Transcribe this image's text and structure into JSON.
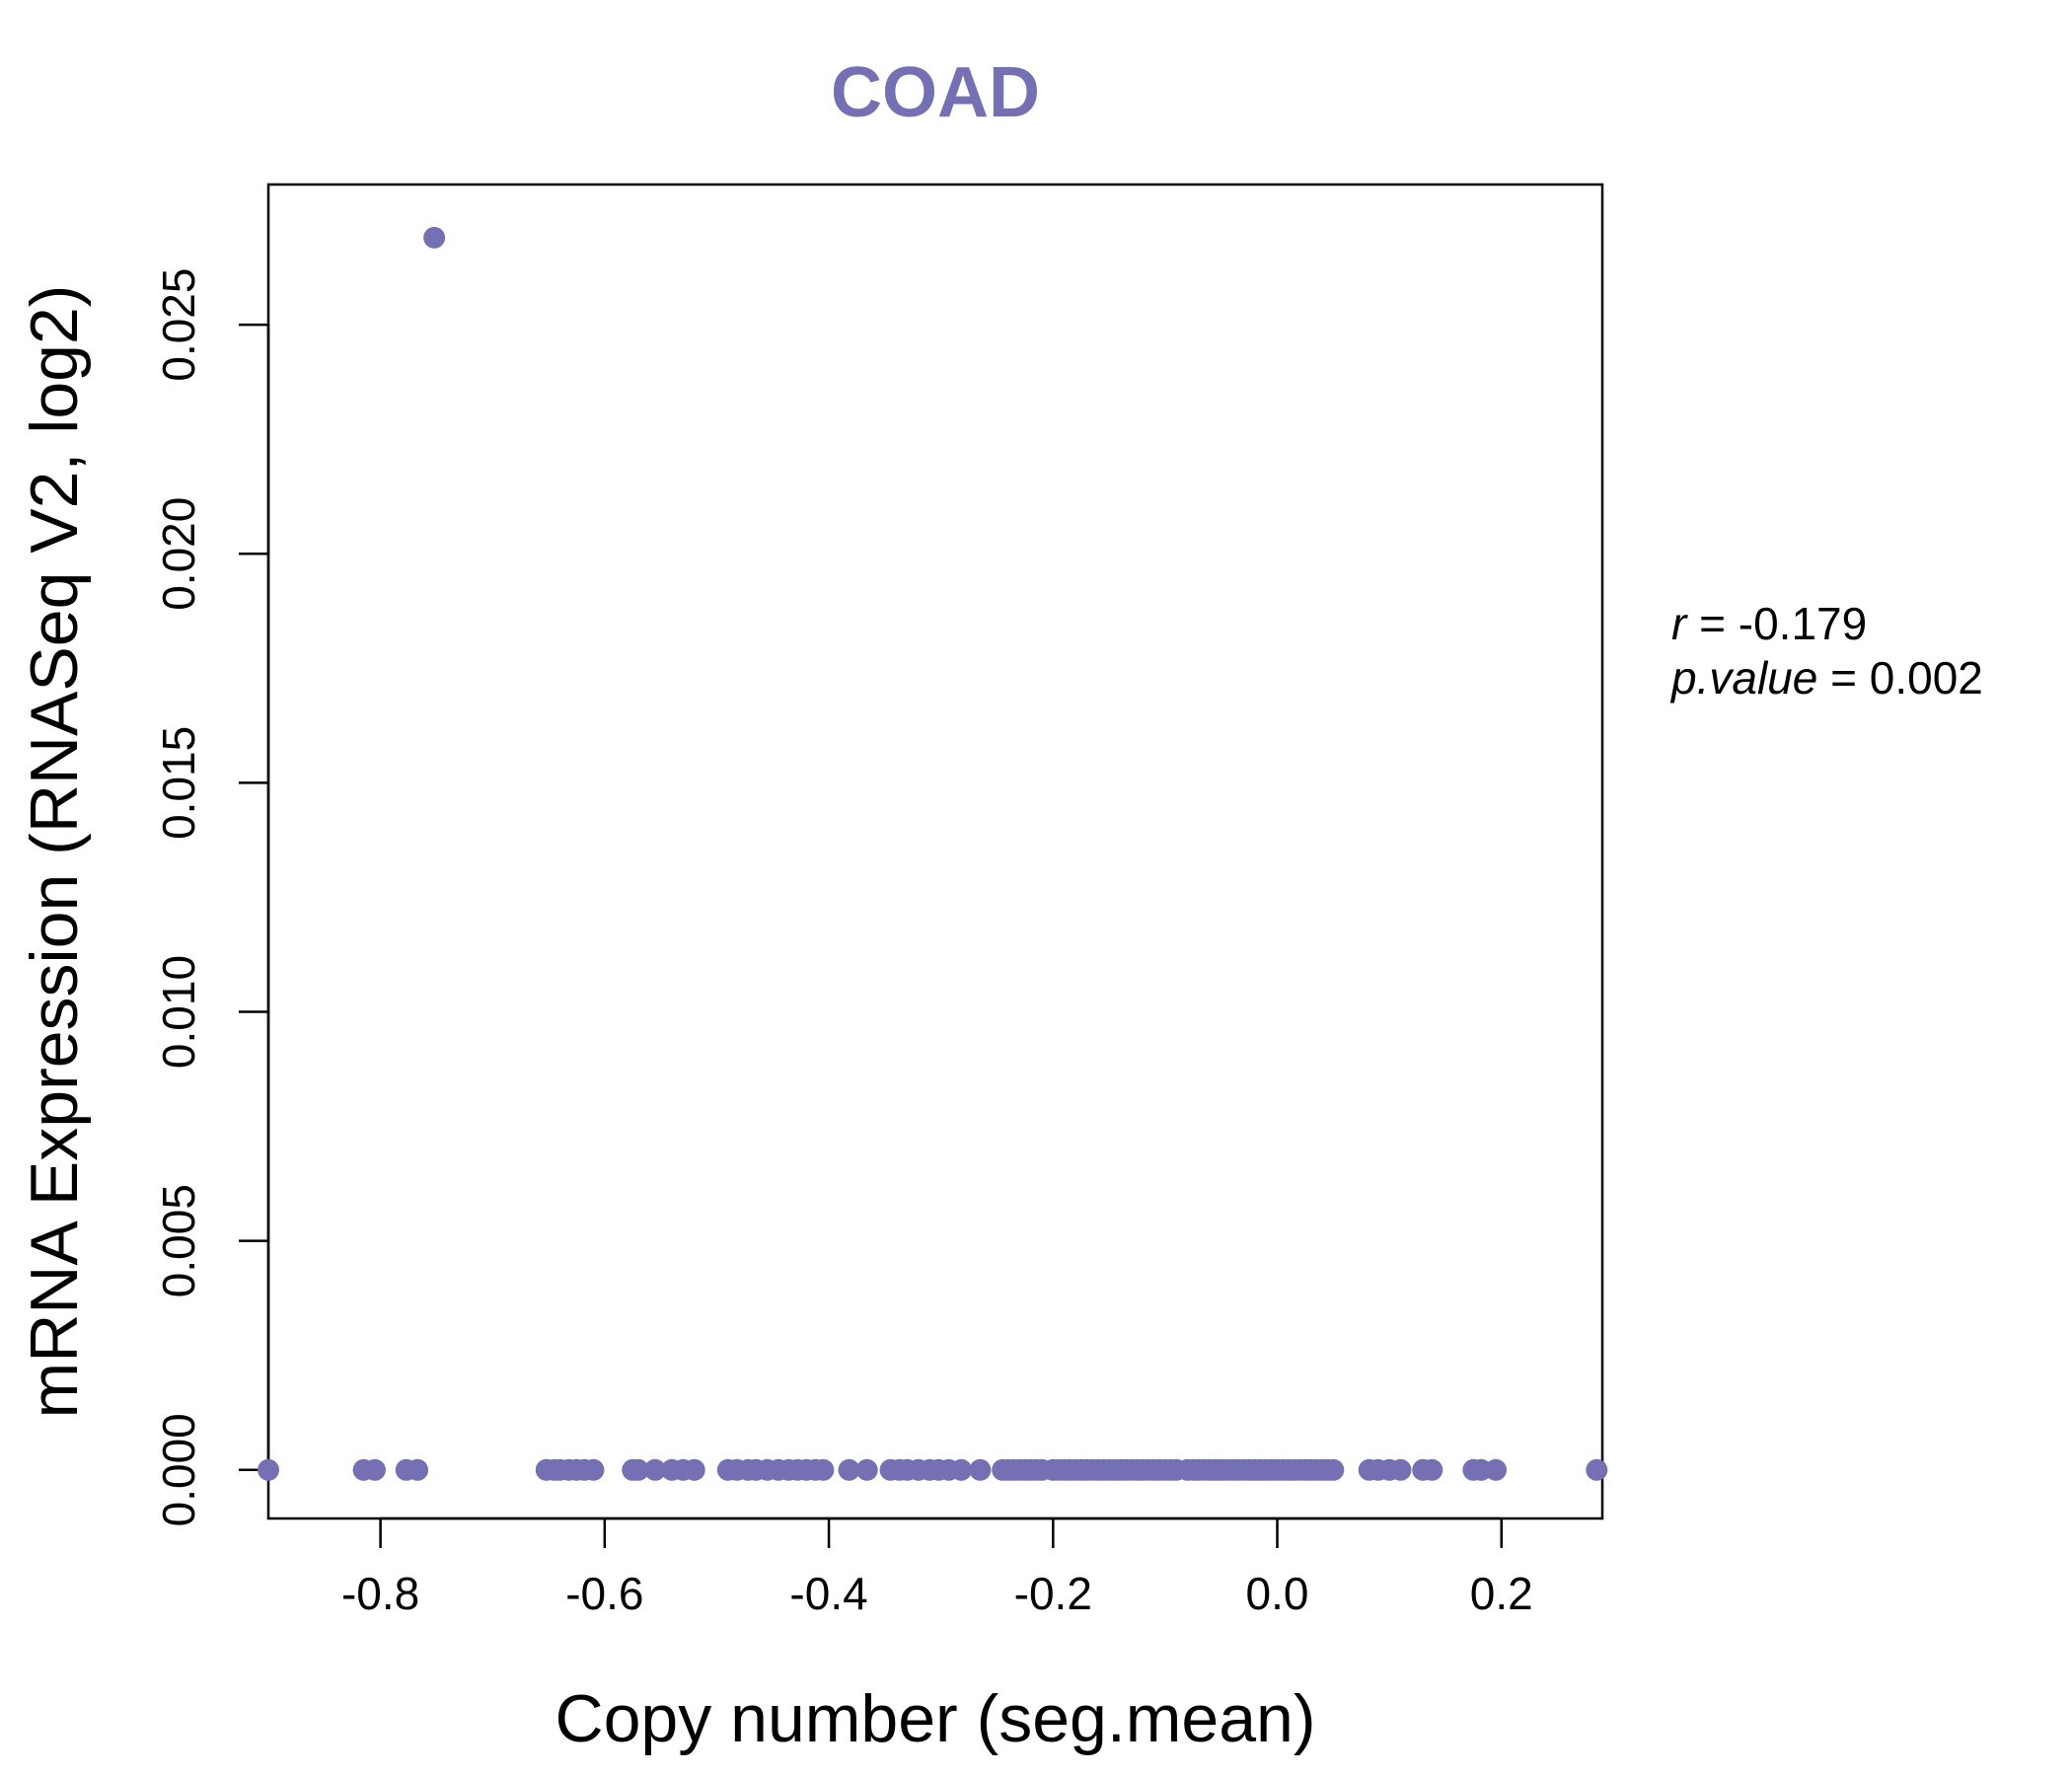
{
  "chart_data": {
    "type": "scatter",
    "title": "COAD",
    "xlabel": "Copy number (seg.mean)",
    "ylabel": "mRNA Expression (RNASeq V2, log2)",
    "xlim": [
      -0.9,
      0.29
    ],
    "ylim": [
      -0.00106,
      0.02806
    ],
    "xticks": [
      -0.8,
      -0.6,
      -0.4,
      -0.2,
      0.0,
      0.2
    ],
    "xtick_labels": [
      "-0.8",
      "-0.6",
      "-0.4",
      "-0.2",
      "0.0",
      "0.2"
    ],
    "yticks": [
      0.0,
      0.005,
      0.01,
      0.015,
      0.02,
      0.025
    ],
    "ytick_labels": [
      "0.000",
      "0.005",
      "0.010",
      "0.015",
      "0.020",
      "0.025"
    ],
    "grid": false,
    "point_color": "#7570b3",
    "stats": {
      "r_label": "r",
      "r_value": "-0.179",
      "p_label": "p.value",
      "p_value": "0.002"
    },
    "x": [
      -0.9,
      -0.815,
      -0.805,
      -0.777,
      -0.767,
      -0.752,
      -0.652,
      -0.645,
      -0.64,
      -0.632,
      -0.625,
      -0.618,
      -0.61,
      -0.575,
      -0.57,
      -0.555,
      -0.54,
      -0.53,
      -0.52,
      -0.49,
      -0.482,
      -0.472,
      -0.465,
      -0.455,
      -0.445,
      -0.436,
      -0.428,
      -0.42,
      -0.412,
      -0.405,
      -0.382,
      -0.366,
      -0.345,
      -0.337,
      -0.33,
      -0.32,
      -0.31,
      -0.302,
      -0.293,
      -0.282,
      -0.265,
      -0.245,
      -0.24,
      -0.235,
      -0.23,
      -0.225,
      -0.22,
      -0.215,
      -0.21,
      -0.2,
      -0.195,
      -0.19,
      -0.185,
      -0.18,
      -0.175,
      -0.17,
      -0.165,
      -0.16,
      -0.155,
      -0.15,
      -0.145,
      -0.14,
      -0.135,
      -0.13,
      -0.125,
      -0.12,
      -0.115,
      -0.11,
      -0.105,
      -0.1,
      -0.095,
      -0.09,
      -0.08,
      -0.075,
      -0.07,
      -0.065,
      -0.06,
      -0.055,
      -0.05,
      -0.045,
      -0.04,
      -0.035,
      -0.03,
      -0.025,
      -0.02,
      -0.015,
      -0.01,
      -0.005,
      0.0,
      0.005,
      0.01,
      0.015,
      0.02,
      0.025,
      0.03,
      0.035,
      0.04,
      0.045,
      0.05,
      0.082,
      0.09,
      0.1,
      0.11,
      0.13,
      0.138,
      0.175,
      0.182,
      0.195,
      0.285
    ],
    "y": [
      0.0,
      0.0,
      0.0,
      0.0,
      0.0,
      0.0269,
      0.0,
      0.0,
      0.0,
      0.0,
      0.0,
      0.0,
      0.0,
      0.0,
      0.0,
      0.0,
      0.0,
      0.0,
      0.0,
      0.0,
      0.0,
      0.0,
      0.0,
      0.0,
      0.0,
      0.0,
      0.0,
      0.0,
      0.0,
      0.0,
      0.0,
      0.0,
      0.0,
      0.0,
      0.0,
      0.0,
      0.0,
      0.0,
      0.0,
      0.0,
      0.0,
      0.0,
      0.0,
      0.0,
      0.0,
      0.0,
      0.0,
      0.0,
      0.0,
      0.0,
      0.0,
      0.0,
      0.0,
      0.0,
      0.0,
      0.0,
      0.0,
      0.0,
      0.0,
      0.0,
      0.0,
      0.0,
      0.0,
      0.0,
      0.0,
      0.0,
      0.0,
      0.0,
      0.0,
      0.0,
      0.0,
      0.0,
      0.0,
      0.0,
      0.0,
      0.0,
      0.0,
      0.0,
      0.0,
      0.0,
      0.0,
      0.0,
      0.0,
      0.0,
      0.0,
      0.0,
      0.0,
      0.0,
      0.0,
      0.0,
      0.0,
      0.0,
      0.0,
      0.0,
      0.0,
      0.0,
      0.0,
      0.0,
      0.0,
      0.0,
      0.0,
      0.0,
      0.0,
      0.0,
      0.0,
      0.0,
      0.0,
      0.0,
      0.0
    ]
  }
}
